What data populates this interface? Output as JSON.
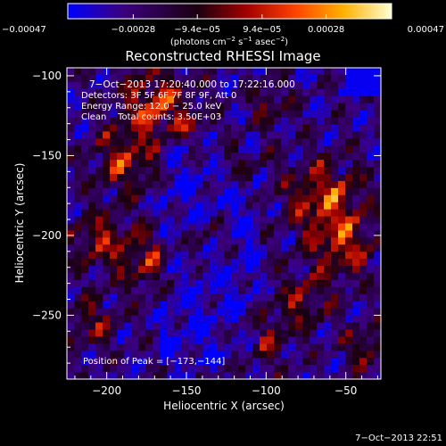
{
  "chart_data": {
    "type": "heatmap",
    "title": "Reconstructed RHESSI Image",
    "xlabel": "Heliocentric X (arcsec)",
    "ylabel": "Heliocentric Y (arcsec)",
    "xlim": [
      -225,
      -28
    ],
    "ylim": [
      -290,
      -95
    ],
    "x_ticks": [
      -200,
      -150,
      -100,
      -50
    ],
    "x_tick_labels": [
      "−200",
      "−150",
      "−100",
      "−50"
    ],
    "y_ticks": [
      -100,
      -150,
      -200,
      -250
    ],
    "y_tick_labels": [
      "−100",
      "−150",
      "−200",
      "−250"
    ],
    "colorbar": {
      "min": -0.00047,
      "max": 0.00047,
      "ticks": [
        -0.00047,
        -0.00028,
        -9.4e-05,
        9.4e-05,
        0.00028,
        0.00047
      ],
      "tick_labels": [
        "−0.00047",
        "−0.00028",
        "−9.4e−05",
        "9.4e−05",
        "0.00028",
        "0.00047"
      ],
      "units_text": "(photons cm",
      "units_exp1": "−2",
      "units_mid": " s",
      "units_exp2": "−1",
      "units_end": " asec",
      "units_exp3": "−2",
      "units_close": ")",
      "colors": [
        "#0000ff",
        "#3b0080",
        "#1a0010",
        "#a00000",
        "#ff4000",
        "#ffb000",
        "#ffffd0"
      ]
    },
    "annotations": {
      "time_range": "7−Oct−2013 17:20:40.000 to 17:22:16.000",
      "detectors": "Detectors: 3F 5F 6F 7F 8F 9F, Att 0",
      "energy_range": "Energy Range: 12.0 − 25.0 keV",
      "clean_counts": "Clean    Total counts: 3.50E+03",
      "peak_position": "Position of Peak = [−173,−144]"
    },
    "peak": [
      -173,
      -144
    ]
  },
  "footer": {
    "timestamp": "7−Oct−2013 22:51"
  }
}
